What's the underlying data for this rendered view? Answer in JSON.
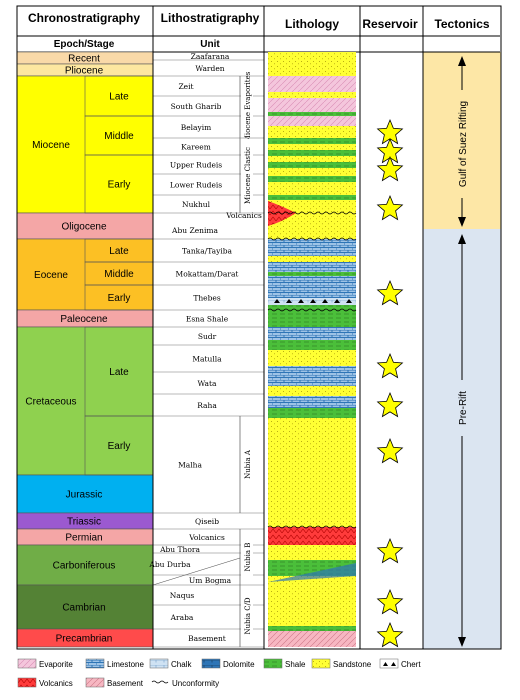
{
  "headers": {
    "chrono": "Chronostratigraphy",
    "litho": "Lithostratigraphy",
    "lithology": "Lithology",
    "reservoir": "Reservoir",
    "tectonics": "Tectonics",
    "epoch_stage": "Epoch/Stage",
    "unit": "Unit"
  },
  "periods": {
    "recent": "Recent",
    "pliocene": "Pliocene",
    "miocene": "Miocene",
    "oligocene": "Oligocene",
    "eocene": "Eocene",
    "paleocene": "Paleocene",
    "cretaceous": "Cretaceous",
    "jurassic": "Jurassic",
    "triassic": "Triassic",
    "permian": "Permian",
    "carboniferous": "Carboniferous",
    "cambrian": "Cambrian",
    "precambrian": "Precambrian"
  },
  "stages": {
    "mio_late": "Late",
    "mio_middle": "Middle",
    "mio_early": "Early",
    "eoc_late": "Late",
    "eoc_middle": "Middle",
    "eoc_early": "Early",
    "cret_late": "Late",
    "cret_early": "Early"
  },
  "units": {
    "zaafarana": "Zaafarana",
    "warden": "Warden",
    "zeit": "Zeit",
    "south_gharib": "South Gharib",
    "belayim": "Belayim",
    "kareem": "Kareem",
    "upper_rudeis": "Upper Rudeis",
    "lower_rudeis": "Lower Rudeis",
    "nukhul": "Nukhul",
    "volcanics_olig": "Volcanics",
    "abu_zenima": "Abu Zenima",
    "tanka": "Tanka/Tayiba",
    "mokattam": "Mokattam/Darat",
    "thebes": "Thebes",
    "esna": "Esna Shale",
    "sudr": "Sudr",
    "matulla": "Matulla",
    "wata": "Wata",
    "raha": "Raha",
    "malha": "Malha",
    "qiseib": "Qiseib",
    "volcanics_perm": "Volcanics",
    "abu_thora": "Abu Thora",
    "abu_durba": "Abu Durba",
    "um_bogma": "Um Bogma",
    "naqus": "Naqus",
    "araba": "Araba",
    "basement": "Basement"
  },
  "groups": {
    "miocene_evaporites": "Miocene Evaporites",
    "miocene_clastic": "Miocene Clastic",
    "nubia_a": "Nubia A",
    "nubia_b": "Nubia B",
    "nubia_cd": "Nubia C/D"
  },
  "tectonics": {
    "rifting": "Gulf of Suez Rifting",
    "prerift": "Pre-Rift"
  },
  "legend": {
    "evaporite": "Evaporite",
    "limestone": "Limestone",
    "chalk": "Chalk",
    "dolomite": "Dolomite",
    "shale": "Shale",
    "sandstone": "Sandstone",
    "chert": "Chert",
    "volcanics": "Volcanics",
    "basement": "Basement",
    "unconformity": "Unconformity"
  },
  "colors": {
    "quaternary": "#f9d9a8",
    "pliocene": "#fde7a0",
    "miocene": "#ffff00",
    "oligocene": "#f4a6a6",
    "eocene": "#fcc024",
    "paleocene": "#f4a6a6",
    "cretaceous": "#8fd14f",
    "jurassic": "#00b0f0",
    "triassic": "#9b59d0",
    "permian": "#f4a6a6",
    "carboniferous": "#70ad47",
    "cambrian": "#548235",
    "precambrian": "#ff4b4b",
    "sand": "#ffff33",
    "shale_green": "#4bbf3a",
    "limestone_blue": "#2e75b6",
    "evaporite_pink": "#f4c6dc",
    "volcanic_red": "#ff3b3b",
    "rift_band": "#fde7a6",
    "prerift_band": "#dbe5f1",
    "star": "#ffff00"
  }
}
